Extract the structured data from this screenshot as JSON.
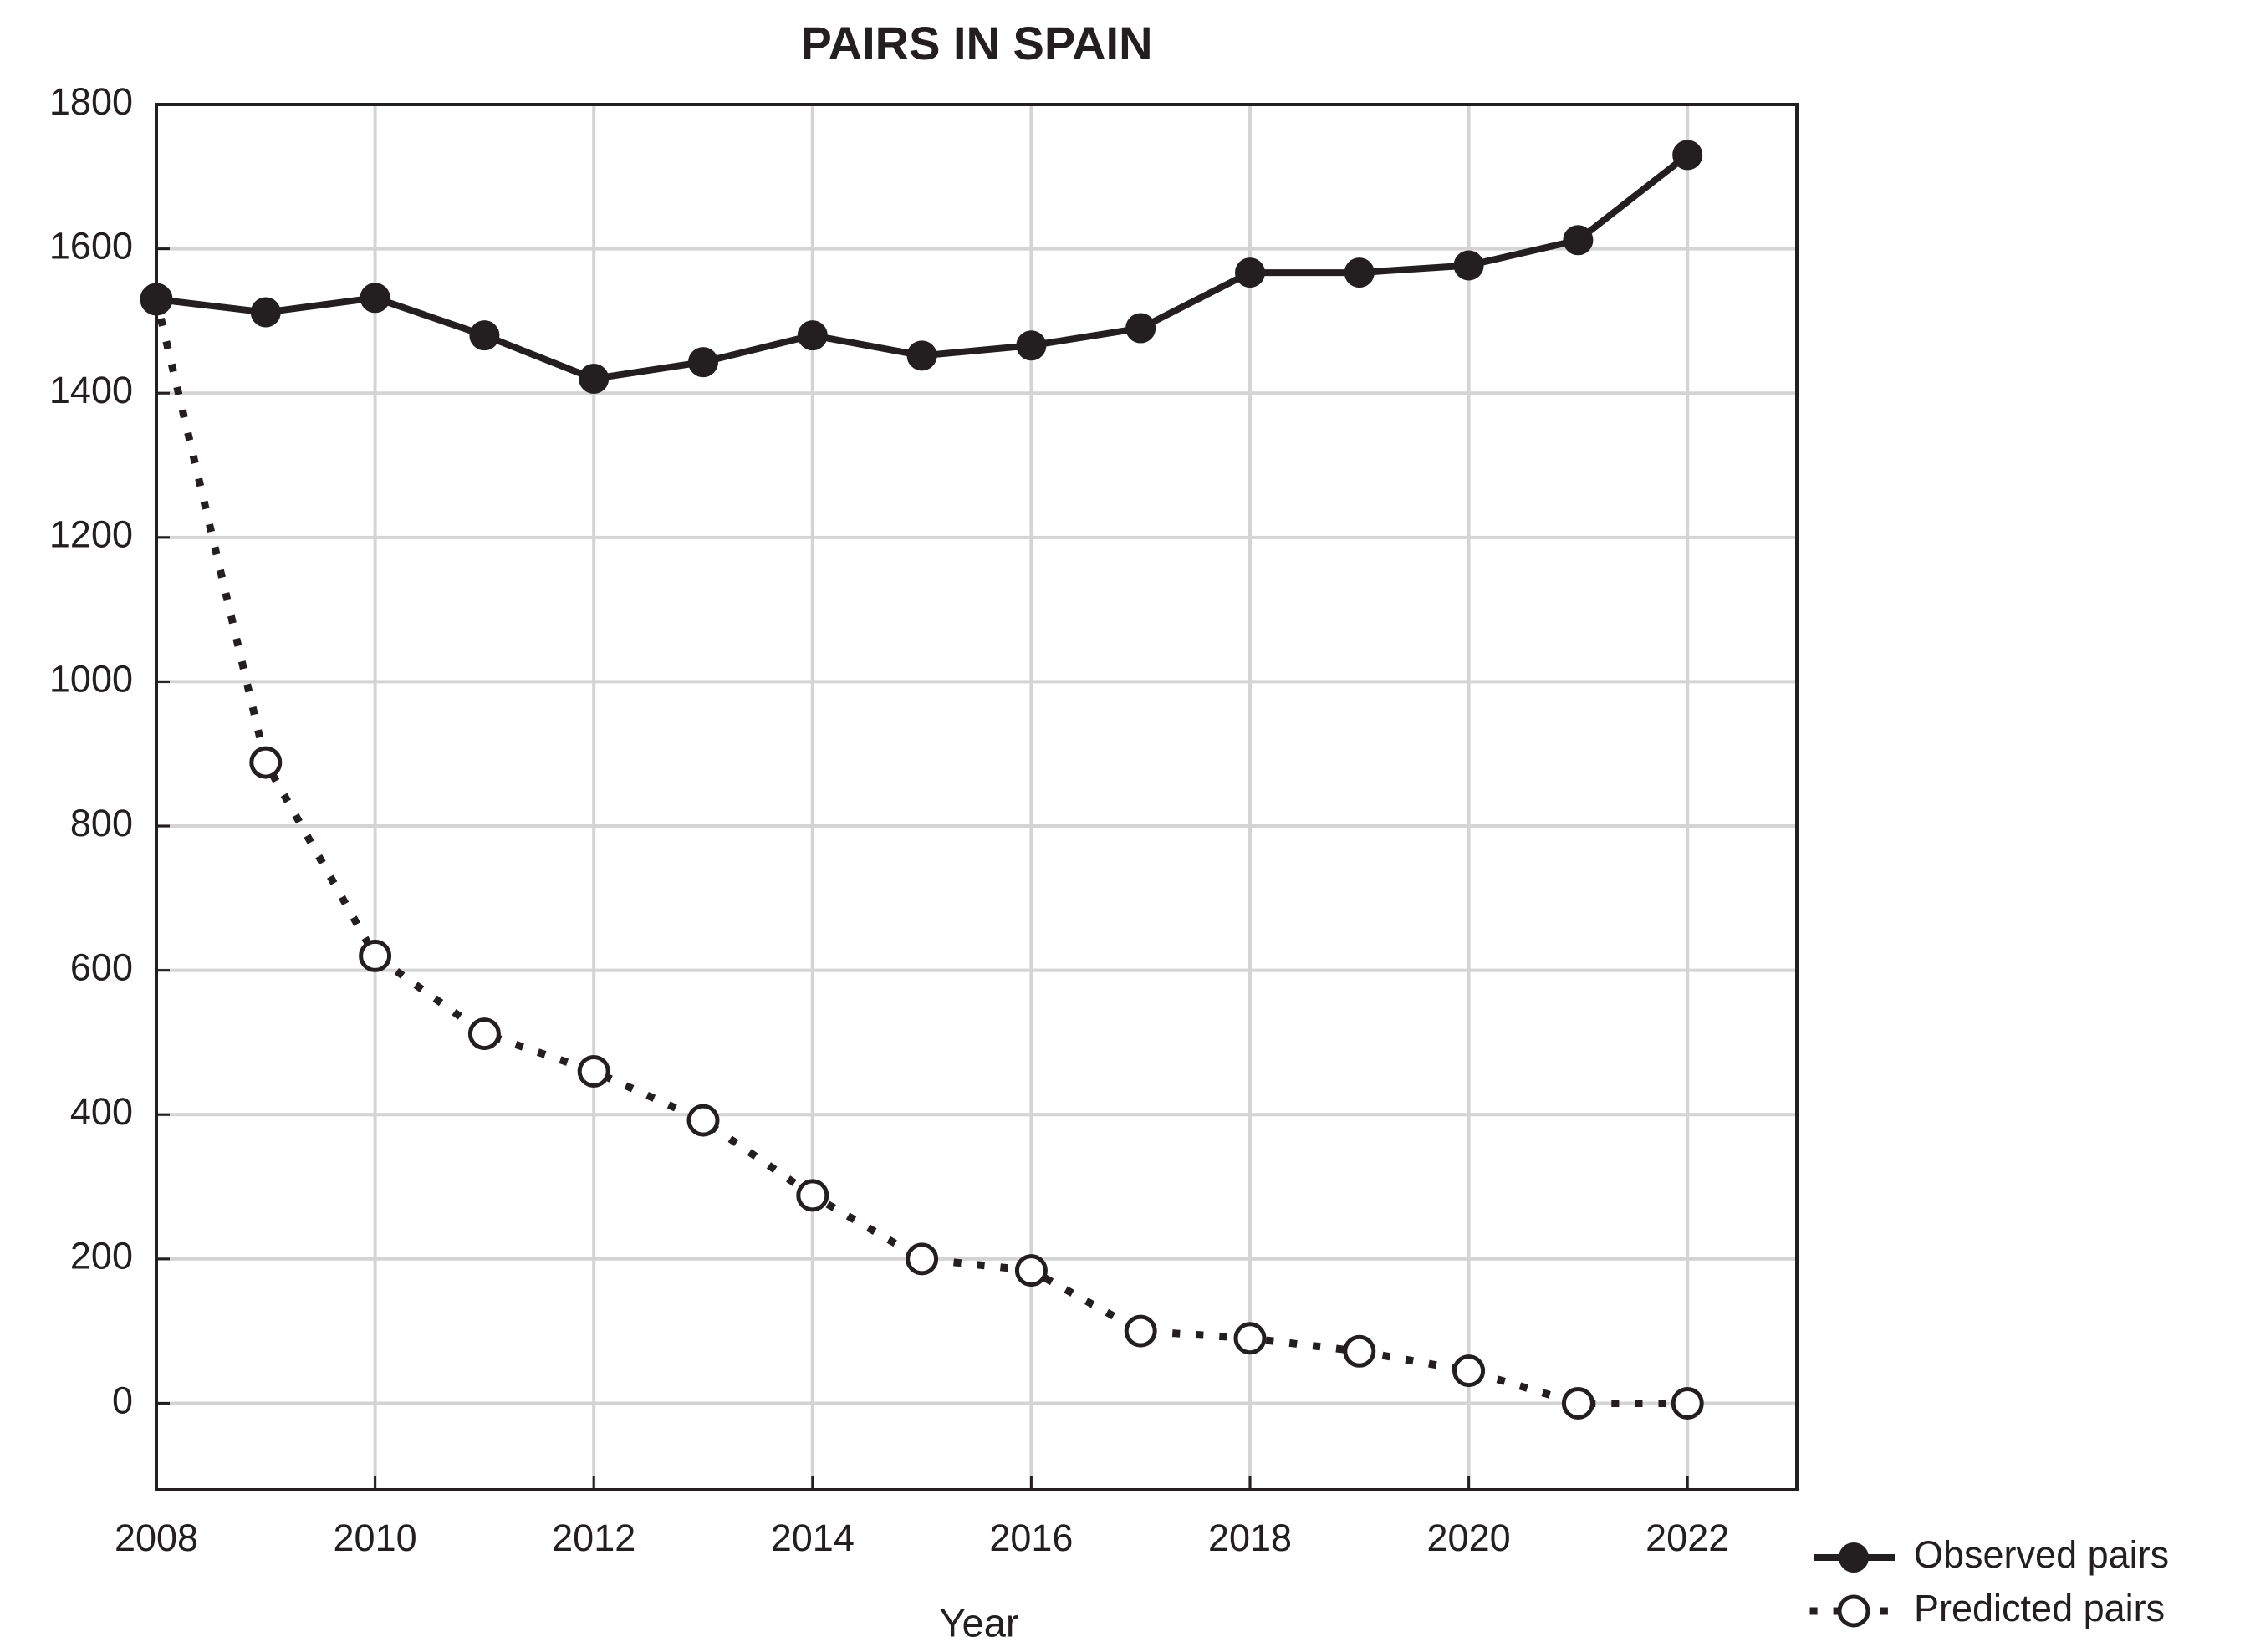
{
  "chart_data": {
    "type": "line",
    "title": "PAIRS IN SPAIN",
    "x_label": "Year",
    "x": [
      2008,
      2009,
      2010,
      2011,
      2012,
      2013,
      2014,
      2015,
      2016,
      2017,
      2018,
      2019,
      2020,
      2021,
      2022
    ],
    "series": [
      {
        "name": "Observed pairs",
        "color": "#231f20",
        "style": "solid",
        "marker": "filled",
        "values": [
          1530,
          1512,
          1532,
          1480,
          1420,
          1443,
          1480,
          1452,
          1466,
          1490,
          1567,
          1567,
          1577,
          1612,
          1730
        ]
      },
      {
        "name": "Predicted pairs",
        "color": "#231f20",
        "style": "dotted",
        "marker": "open",
        "values": [
          1530,
          888,
          620,
          512,
          460,
          392,
          288,
          200,
          184,
          100,
          90,
          72,
          45,
          0,
          0
        ]
      }
    ],
    "xlim": [
      2008,
      2023
    ],
    "xticks": [
      2008,
      2010,
      2012,
      2014,
      2016,
      2018,
      2020,
      2022
    ],
    "ylim": [
      -120,
      1800
    ],
    "yticks": [
      0,
      200,
      400,
      600,
      800,
      1000,
      1200,
      1400,
      1600,
      1800
    ],
    "grid": true,
    "legend": "bottom-right"
  }
}
